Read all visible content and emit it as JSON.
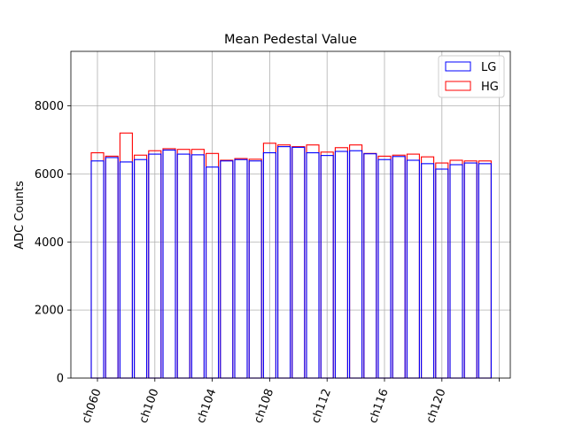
{
  "chart_data": {
    "type": "bar",
    "title": "Mean Pedestal Value",
    "xlabel": "",
    "ylabel": "ADC Counts",
    "ylim": [
      0,
      9600
    ],
    "yticks": [
      0,
      2000,
      4000,
      6000,
      8000
    ],
    "grid": true,
    "legend_position": "top-right",
    "x_ticks": [
      {
        "pos": 0,
        "label": "ch060"
      },
      {
        "pos": 4,
        "label": "ch100"
      },
      {
        "pos": 8,
        "label": "ch104"
      },
      {
        "pos": 12,
        "label": "ch108"
      },
      {
        "pos": 16,
        "label": "ch112"
      },
      {
        "pos": 20,
        "label": "ch116"
      },
      {
        "pos": 24,
        "label": "ch120"
      },
      {
        "pos": 28,
        "label": ""
      }
    ],
    "series": [
      {
        "name": "LG",
        "color": "#0000ff",
        "values": [
          6380,
          6480,
          6350,
          6420,
          6580,
          6700,
          6580,
          6560,
          6200,
          6380,
          6420,
          6380,
          6620,
          6800,
          6780,
          6620,
          6540,
          6660,
          6680,
          6590,
          6420,
          6510,
          6400,
          6300,
          6140,
          6270,
          6320,
          6300
        ]
      },
      {
        "name": "HG",
        "color": "#ff0000",
        "values": [
          6620,
          6520,
          7200,
          6550,
          6680,
          6740,
          6720,
          6720,
          6600,
          6400,
          6450,
          6430,
          6900,
          6850,
          6800,
          6850,
          6640,
          6770,
          6850,
          6600,
          6520,
          6550,
          6580,
          6500,
          6320,
          6400,
          6380,
          6380
        ]
      }
    ]
  }
}
